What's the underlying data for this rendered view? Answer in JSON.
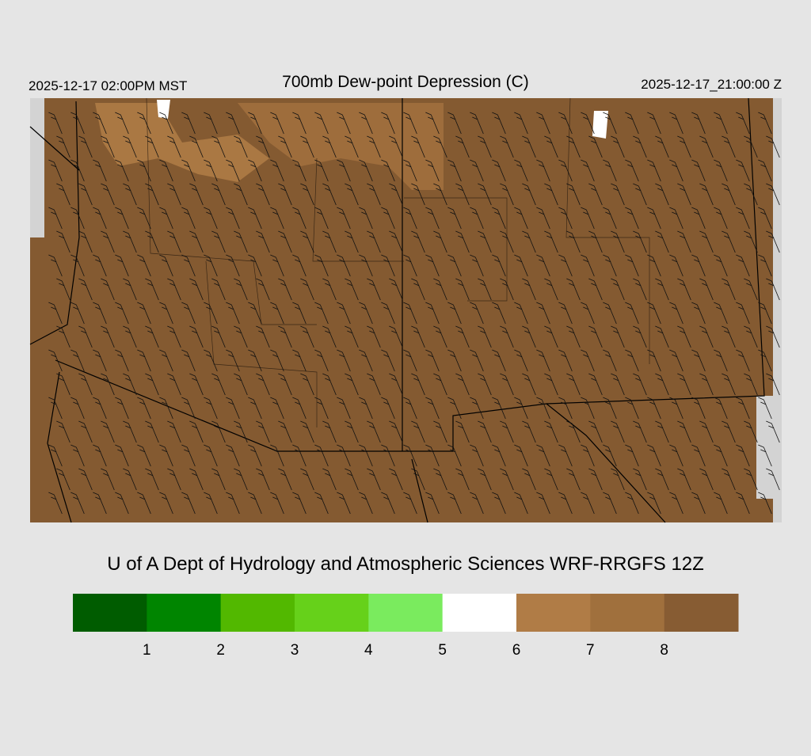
{
  "header": {
    "left": "2025-12-17 02:00PM MST",
    "title": "700mb Dew-point Depression (C)",
    "right": "2025-12-17_21:00:00 Z"
  },
  "credit": "U of A Dept of Hydrology and Atmospheric Sciences WRF-RRGFS 12Z",
  "colorbar": {
    "colors": [
      "#005c00",
      "#008500",
      "#52b800",
      "#66d11a",
      "#7aeb5e",
      "#ffffff",
      "#b07c46",
      "#a0703d",
      "#875c33"
    ],
    "labels": [
      1,
      2,
      3,
      4,
      5,
      6,
      7,
      8
    ]
  }
}
